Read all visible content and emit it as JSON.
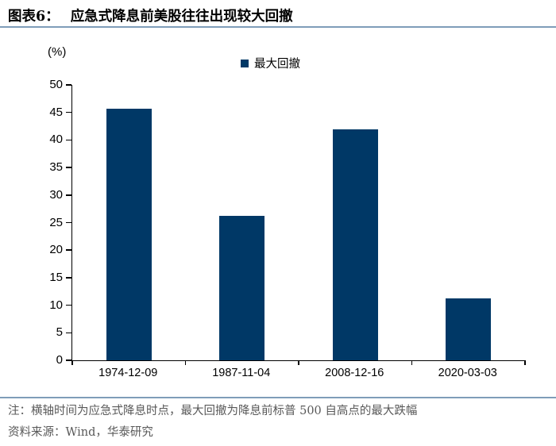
{
  "page": {
    "figure_label": "图表6：",
    "title": "应急式降息前美股往往出现较大回撤"
  },
  "chart": {
    "unit_label": "(%)",
    "legend_label": "最大回撤"
  },
  "chart_data": {
    "type": "bar",
    "title": "应急式降息前美股往往出现较大回撤",
    "categories": [
      "1974-12-09",
      "1987-11-04",
      "2008-12-16",
      "2020-03-03"
    ],
    "series": [
      {
        "name": "最大回撤",
        "values": [
          45.7,
          26.2,
          41.9,
          11.3
        ]
      }
    ],
    "xlabel": "",
    "ylabel": "(%)",
    "ylim": [
      0,
      50
    ],
    "ytick_step": 5,
    "grid": false,
    "legend_position": "top-center",
    "bar_color": "#003866",
    "axis_color": "#000000"
  },
  "footer": {
    "note": "注：横轴时间为应急式降息时点，最大回撤为降息前标普 500 自高点的最大跌幅",
    "source": "资料来源：Wind，华泰研究"
  },
  "colors": {
    "bar": "#003866",
    "rule": "#7f9db9",
    "note_text": "#595959"
  }
}
